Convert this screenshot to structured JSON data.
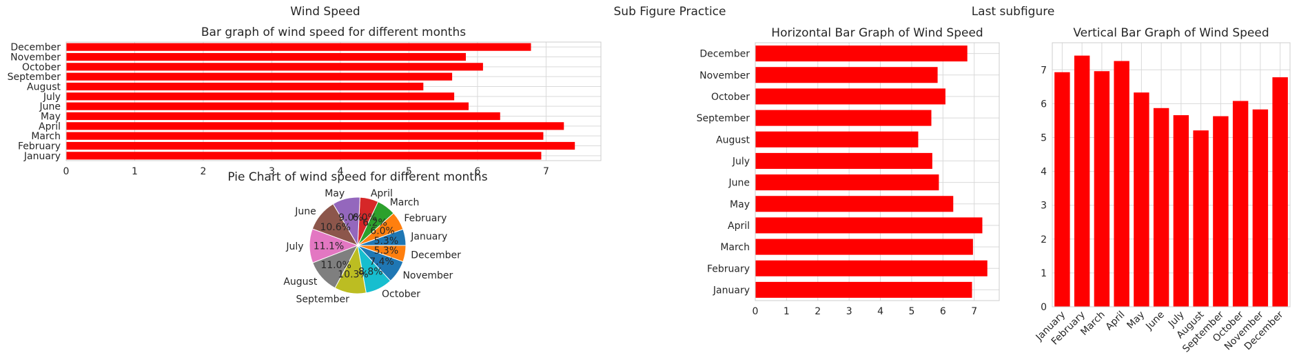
{
  "figure_titles": {
    "left": "Wind Speed",
    "center": "Sub Figure Practice",
    "right": "Last subfigure"
  },
  "colors": {
    "bar": "#ff0000",
    "grid": "#d9d9d9",
    "pie": [
      "#1f77b4",
      "#ff7f0e",
      "#2ca02c",
      "#d62728",
      "#9467bd",
      "#8c564b",
      "#e377c2",
      "#7f7f7f",
      "#bcbd22",
      "#17becf"
    ]
  },
  "chart_data": [
    {
      "id": "hbar_small",
      "type": "bar",
      "orientation": "horizontal",
      "title": "Bar graph of wind speed for different months",
      "categories": [
        "January",
        "February",
        "March",
        "April",
        "May",
        "June",
        "July",
        "August",
        "September",
        "October",
        "November",
        "December"
      ],
      "values": [
        6.93,
        7.42,
        6.96,
        7.26,
        6.33,
        5.87,
        5.66,
        5.21,
        5.63,
        6.08,
        5.83,
        6.78
      ],
      "xlim": [
        0,
        7.8
      ],
      "xticks": [
        "0",
        "1",
        "2",
        "3",
        "4",
        "5",
        "6",
        "7"
      ],
      "grid": true
    },
    {
      "id": "pie",
      "type": "pie",
      "title": "Pie Chart of wind speed for different months",
      "slices": [
        {
          "label": "January",
          "value": 5.3,
          "pct": "5.3%"
        },
        {
          "label": "February",
          "value": 6.0,
          "pct": "6.0%"
        },
        {
          "label": "March",
          "value": 6.2,
          "pct": "6.2%"
        },
        {
          "label": "April",
          "value": 6.0,
          "pct": "6.0%"
        },
        {
          "label": "May",
          "value": 9.0,
          "pct": "9.0%"
        },
        {
          "label": "June",
          "value": 10.6,
          "pct": "10.6%"
        },
        {
          "label": "July",
          "value": 11.1,
          "pct": "11.1%"
        },
        {
          "label": "August",
          "value": 11.0,
          "pct": "11.0%"
        },
        {
          "label": "September",
          "value": 10.3,
          "pct": "10.3%"
        },
        {
          "label": "October",
          "value": 8.8,
          "pct": "8.8%"
        },
        {
          "label": "November",
          "value": 7.4,
          "pct": "7.4%"
        },
        {
          "label": "December",
          "value": 5.3,
          "pct": "5.3%"
        }
      ]
    },
    {
      "id": "hbar_large",
      "type": "bar",
      "orientation": "horizontal",
      "title": "Horizontal Bar Graph of Wind Speed",
      "categories": [
        "January",
        "February",
        "March",
        "April",
        "May",
        "June",
        "July",
        "August",
        "September",
        "October",
        "November",
        "December"
      ],
      "values": [
        6.93,
        7.42,
        6.96,
        7.26,
        6.33,
        5.87,
        5.66,
        5.21,
        5.63,
        6.08,
        5.83,
        6.78
      ],
      "xlim": [
        0,
        7.8
      ],
      "xticks": [
        "0",
        "1",
        "2",
        "3",
        "4",
        "5",
        "6",
        "7"
      ],
      "grid": true
    },
    {
      "id": "vbar",
      "type": "bar",
      "orientation": "vertical",
      "title": "Vertical Bar Graph of Wind Speed",
      "categories": [
        "January",
        "February",
        "March",
        "April",
        "May",
        "June",
        "July",
        "August",
        "September",
        "October",
        "November",
        "December"
      ],
      "values": [
        6.93,
        7.42,
        6.96,
        7.26,
        6.33,
        5.87,
        5.66,
        5.21,
        5.63,
        6.08,
        5.83,
        6.78
      ],
      "ylim": [
        0,
        7.8
      ],
      "yticks": [
        "0",
        "1",
        "2",
        "3",
        "4",
        "5",
        "6",
        "7"
      ],
      "grid": true
    }
  ]
}
